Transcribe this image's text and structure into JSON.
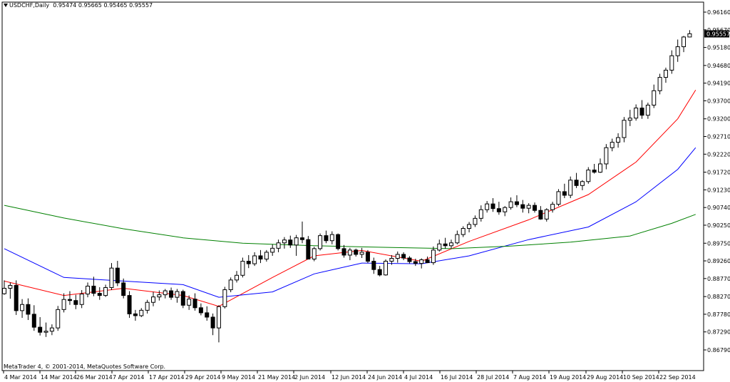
{
  "header": {
    "symbol": "USDCHF,Daily",
    "ohlc": "0.95474 0.95665 0.95465 0.95557"
  },
  "footer": {
    "credit": "MetaTrader 4, © 2001-2014, MetaQuotes Software Corp."
  },
  "chart_data": {
    "type": "candlestick",
    "title": "USDCHF,Daily",
    "ylim": [
      0.8662,
      0.9655
    ],
    "y_ticks": [
      "0.96160",
      "0.95670",
      "0.95180",
      "0.94680",
      "0.94190",
      "0.93700",
      "0.93200",
      "0.92710",
      "0.92220",
      "0.91720",
      "0.91230",
      "0.90740",
      "0.90250",
      "0.89750",
      "0.89260",
      "0.88770",
      "0.88270",
      "0.87780",
      "0.87290",
      "0.86790"
    ],
    "current_price": "0.95557",
    "x_ticks": [
      "4 Mar 2014",
      "14 Mar 2014",
      "26 Mar 2014",
      "7 Apr 2014",
      "17 Apr 2014",
      "29 Apr 2014",
      "9 May 2014",
      "21 May 2014",
      "2 Jun 2014",
      "12 Jun 2014",
      "24 Jun 2014",
      "4 Jul 2014",
      "16 Jul 2014",
      "28 Jul 2014",
      "7 Aug 2014",
      "19 Aug 2014",
      "29 Aug 2014",
      "10 Sep 2014",
      "22 Sep 2014"
    ],
    "colors": {
      "candle": "#000000",
      "ma_fast": "#ff0000",
      "ma_mid": "#0000ff",
      "ma_slow": "#008000",
      "axis": "#000000",
      "background": "#ffffff"
    },
    "candles": {
      "fields": [
        "open",
        "high",
        "low",
        "close"
      ],
      "values": [
        [
          0.8835,
          0.8872,
          0.8832,
          0.885
        ],
        [
          0.885,
          0.8866,
          0.8821,
          0.8858
        ],
        [
          0.8858,
          0.8872,
          0.8776,
          0.8788
        ],
        [
          0.8788,
          0.882,
          0.8768,
          0.8805
        ],
        [
          0.8805,
          0.8822,
          0.8762,
          0.8778
        ],
        [
          0.8778,
          0.8803,
          0.8732,
          0.8742
        ],
        [
          0.8742,
          0.877,
          0.8719,
          0.8728
        ],
        [
          0.8728,
          0.8755,
          0.8715,
          0.8731
        ],
        [
          0.8731,
          0.875,
          0.872,
          0.874
        ],
        [
          0.874,
          0.8801,
          0.8732,
          0.8791
        ],
        [
          0.8791,
          0.8836,
          0.8783,
          0.8819
        ],
        [
          0.8819,
          0.8842,
          0.8804,
          0.8816
        ],
        [
          0.8816,
          0.8832,
          0.8792,
          0.8805
        ],
        [
          0.8805,
          0.8845,
          0.8795,
          0.8834
        ],
        [
          0.8834,
          0.8866,
          0.8825,
          0.8856
        ],
        [
          0.8856,
          0.8882,
          0.8828,
          0.8836
        ],
        [
          0.8836,
          0.8853,
          0.8818,
          0.883
        ],
        [
          0.883,
          0.886,
          0.8826,
          0.8852
        ],
        [
          0.8852,
          0.892,
          0.8845,
          0.8906
        ],
        [
          0.8906,
          0.8926,
          0.8856,
          0.8865
        ],
        [
          0.8865,
          0.8877,
          0.8822,
          0.883
        ],
        [
          0.883,
          0.8842,
          0.8768,
          0.8779
        ],
        [
          0.8779,
          0.879,
          0.876,
          0.8774
        ],
        [
          0.8774,
          0.8795,
          0.877,
          0.8789
        ],
        [
          0.8789,
          0.8818,
          0.878,
          0.8811
        ],
        [
          0.8811,
          0.884,
          0.88,
          0.8826
        ],
        [
          0.8826,
          0.8844,
          0.8816,
          0.8832
        ],
        [
          0.8832,
          0.8848,
          0.8822,
          0.8843
        ],
        [
          0.8843,
          0.8852,
          0.8818,
          0.8825
        ],
        [
          0.8825,
          0.8848,
          0.881,
          0.8841
        ],
        [
          0.8841,
          0.8846,
          0.8795,
          0.8803
        ],
        [
          0.8803,
          0.883,
          0.879,
          0.882
        ],
        [
          0.882,
          0.8836,
          0.8788,
          0.8796
        ],
        [
          0.8796,
          0.8808,
          0.8775,
          0.8782
        ],
        [
          0.8782,
          0.88,
          0.876,
          0.877
        ],
        [
          0.877,
          0.878,
          0.872,
          0.874
        ],
        [
          0.874,
          0.8803,
          0.87,
          0.8799
        ],
        [
          0.8799,
          0.8854,
          0.8794,
          0.8846
        ],
        [
          0.8846,
          0.888,
          0.8839,
          0.8873
        ],
        [
          0.8873,
          0.8898,
          0.8866,
          0.8886
        ],
        [
          0.8886,
          0.8935,
          0.888,
          0.8925
        ],
        [
          0.8925,
          0.8942,
          0.8906,
          0.8918
        ],
        [
          0.8918,
          0.895,
          0.8912,
          0.894
        ],
        [
          0.894,
          0.8956,
          0.892,
          0.8931
        ],
        [
          0.8931,
          0.8956,
          0.8924,
          0.895
        ],
        [
          0.895,
          0.8972,
          0.894,
          0.8961
        ],
        [
          0.8961,
          0.8985,
          0.895,
          0.8976
        ],
        [
          0.8976,
          0.8992,
          0.896,
          0.8984
        ],
        [
          0.8984,
          0.8996,
          0.8962,
          0.897
        ],
        [
          0.897,
          0.8998,
          0.894,
          0.899
        ],
        [
          0.899,
          0.9035,
          0.8975,
          0.8985
        ],
        [
          0.8985,
          0.8995,
          0.893,
          0.8931
        ],
        [
          0.8931,
          0.8965,
          0.8925,
          0.896
        ],
        [
          0.896,
          0.9002,
          0.8955,
          0.8996
        ],
        [
          0.8996,
          0.901,
          0.8975,
          0.8982
        ],
        [
          0.8982,
          0.9008,
          0.8972,
          0.8999
        ],
        [
          0.8999,
          0.9002,
          0.8955,
          0.896
        ],
        [
          0.896,
          0.897,
          0.8935,
          0.8942
        ],
        [
          0.8942,
          0.8962,
          0.8928,
          0.8956
        ],
        [
          0.8956,
          0.896,
          0.8938,
          0.8944
        ],
        [
          0.8944,
          0.8962,
          0.8934,
          0.895
        ],
        [
          0.895,
          0.8956,
          0.892,
          0.8925
        ],
        [
          0.8925,
          0.8935,
          0.889,
          0.8902
        ],
        [
          0.8902,
          0.8912,
          0.8883,
          0.8887
        ],
        [
          0.8887,
          0.893,
          0.8885,
          0.8925
        ],
        [
          0.8925,
          0.8942,
          0.8915,
          0.8933
        ],
        [
          0.8933,
          0.8952,
          0.8921,
          0.8944
        ],
        [
          0.8944,
          0.895,
          0.8928,
          0.8934
        ],
        [
          0.8934,
          0.8939,
          0.8919,
          0.8924
        ],
        [
          0.8924,
          0.8932,
          0.8912,
          0.8919
        ],
        [
          0.8919,
          0.8933,
          0.8905,
          0.8929
        ],
        [
          0.8929,
          0.8938,
          0.892,
          0.8921
        ],
        [
          0.8921,
          0.8966,
          0.8915,
          0.8956
        ],
        [
          0.8956,
          0.8985,
          0.8952,
          0.8973
        ],
        [
          0.8973,
          0.899,
          0.896,
          0.8968
        ],
        [
          0.8968,
          0.8985,
          0.896,
          0.8976
        ],
        [
          0.8976,
          0.901,
          0.8972,
          0.8999
        ],
        [
          0.8999,
          0.9022,
          0.8992,
          0.9016
        ],
        [
          0.9016,
          0.9034,
          0.9005,
          0.9027
        ],
        [
          0.9027,
          0.9052,
          0.902,
          0.9044
        ],
        [
          0.9044,
          0.908,
          0.9035,
          0.9068
        ],
        [
          0.9068,
          0.9092,
          0.906,
          0.9084
        ],
        [
          0.9084,
          0.91,
          0.9062,
          0.9071
        ],
        [
          0.9071,
          0.909,
          0.9054,
          0.9062
        ],
        [
          0.9062,
          0.9078,
          0.905,
          0.9074
        ],
        [
          0.9074,
          0.9102,
          0.9068,
          0.909
        ],
        [
          0.909,
          0.9108,
          0.9075,
          0.9082
        ],
        [
          0.9082,
          0.9095,
          0.906,
          0.9072
        ],
        [
          0.9072,
          0.9086,
          0.9058,
          0.908
        ],
        [
          0.908,
          0.9088,
          0.906,
          0.9066
        ],
        [
          0.9066,
          0.9078,
          0.904,
          0.9042
        ],
        [
          0.9042,
          0.9072,
          0.9035,
          0.9068
        ],
        [
          0.9068,
          0.909,
          0.906,
          0.9083
        ],
        [
          0.9083,
          0.9125,
          0.9078,
          0.9118
        ],
        [
          0.9118,
          0.914,
          0.91,
          0.9108
        ],
        [
          0.9108,
          0.916,
          0.91,
          0.915
        ],
        [
          0.915,
          0.917,
          0.9128,
          0.9135
        ],
        [
          0.9135,
          0.915,
          0.9122,
          0.9146
        ],
        [
          0.9146,
          0.9186,
          0.914,
          0.9178
        ],
        [
          0.9178,
          0.9195,
          0.9168,
          0.9172
        ],
        [
          0.9172,
          0.921,
          0.917,
          0.9195
        ],
        [
          0.9195,
          0.925,
          0.918,
          0.924
        ],
        [
          0.924,
          0.9265,
          0.923,
          0.9255
        ],
        [
          0.9255,
          0.928,
          0.924,
          0.9268
        ],
        [
          0.9268,
          0.9325,
          0.9255,
          0.9316
        ],
        [
          0.9316,
          0.9345,
          0.93,
          0.9322
        ],
        [
          0.9322,
          0.936,
          0.9315,
          0.935
        ],
        [
          0.935,
          0.9372,
          0.932,
          0.933
        ],
        [
          0.933,
          0.9365,
          0.932,
          0.9358
        ],
        [
          0.9358,
          0.9415,
          0.935,
          0.9398
        ],
        [
          0.9398,
          0.9445,
          0.9388,
          0.9435
        ],
        [
          0.9435,
          0.9462,
          0.942,
          0.9455
        ],
        [
          0.9455,
          0.951,
          0.9445,
          0.9495
        ],
        [
          0.9495,
          0.954,
          0.9478,
          0.952
        ],
        [
          0.952,
          0.955,
          0.9505,
          0.9547
        ],
        [
          0.9547,
          0.9566,
          0.9546,
          0.9556
        ]
      ]
    },
    "moving_averages": [
      {
        "color": "red",
        "points": [
          [
            0,
            0.887
          ],
          [
            10,
            0.883
          ],
          [
            20,
            0.885
          ],
          [
            30,
            0.883
          ],
          [
            36,
            0.88
          ],
          [
            45,
            0.888
          ],
          [
            52,
            0.894
          ],
          [
            60,
            0.8955
          ],
          [
            70,
            0.8925
          ],
          [
            78,
            0.898
          ],
          [
            88,
            0.904
          ],
          [
            98,
            0.911
          ],
          [
            106,
            0.92
          ],
          [
            113,
            0.932
          ],
          [
            116,
            0.94
          ]
        ]
      },
      {
        "color": "blue",
        "points": [
          [
            0,
            0.896
          ],
          [
            10,
            0.888
          ],
          [
            20,
            0.887
          ],
          [
            30,
            0.886
          ],
          [
            36,
            0.8825
          ],
          [
            45,
            0.884
          ],
          [
            52,
            0.889
          ],
          [
            60,
            0.892
          ],
          [
            70,
            0.8918
          ],
          [
            78,
            0.894
          ],
          [
            88,
            0.8985
          ],
          [
            98,
            0.902
          ],
          [
            106,
            0.909
          ],
          [
            113,
            0.918
          ],
          [
            116,
            0.924
          ]
        ]
      },
      {
        "color": "green",
        "points": [
          [
            0,
            0.908
          ],
          [
            10,
            0.9045
          ],
          [
            20,
            0.9015
          ],
          [
            30,
            0.899
          ],
          [
            40,
            0.8975
          ],
          [
            52,
            0.8968
          ],
          [
            65,
            0.8963
          ],
          [
            75,
            0.896
          ],
          [
            85,
            0.8967
          ],
          [
            95,
            0.8978
          ],
          [
            105,
            0.8995
          ],
          [
            112,
            0.903
          ],
          [
            116,
            0.9055
          ]
        ]
      }
    ]
  }
}
